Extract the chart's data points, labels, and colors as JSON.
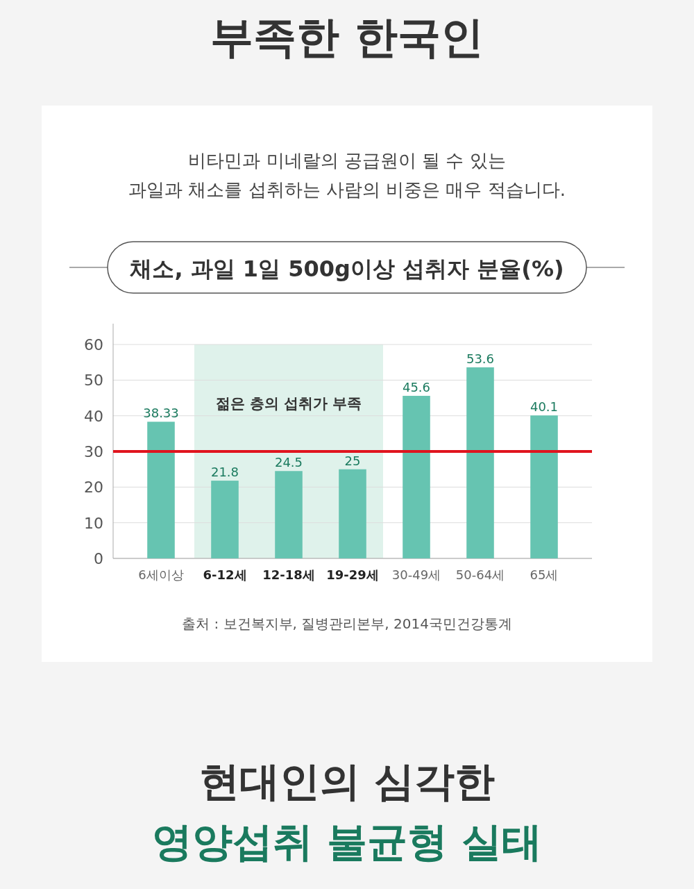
{
  "chart_data": {
    "type": "bar",
    "title": "채소, 과일 1일 500g이상 섭취자 분율(%)",
    "subtitle": "비타민과 미네랄의 공급원이 될 수 있는\n과일과 채소를 섭취하는 사람의 비중은 매우 적습니다.",
    "categories": [
      "6세이상",
      "6-12세",
      "12-18세",
      "19-29세",
      "30-49세",
      "50-64세",
      "65세"
    ],
    "values": [
      38.33,
      21.8,
      24.5,
      25,
      45.6,
      53.6,
      40.1
    ],
    "color": "#66c4b1",
    "data_labels": true,
    "ylim": [
      0,
      60
    ],
    "yticks": [
      0,
      10,
      20,
      30,
      40,
      50,
      60
    ],
    "grid": "y",
    "ref_lines": [
      {
        "axis": "y",
        "value": 30,
        "color": "#e0141e"
      }
    ],
    "bands": [
      {
        "axis": "x",
        "from": "6-12세",
        "to": "19-29세",
        "label": "젊은 층의 섭취가 부족",
        "color": "#dff2eb"
      }
    ],
    "annotations": [
      "부족한 한국인",
      "출처 : 보건복지부, 질병관리본부, 2014국민건강통계",
      "현대인의 심각한",
      "영양섭취 불균형 실태"
    ]
  }
}
